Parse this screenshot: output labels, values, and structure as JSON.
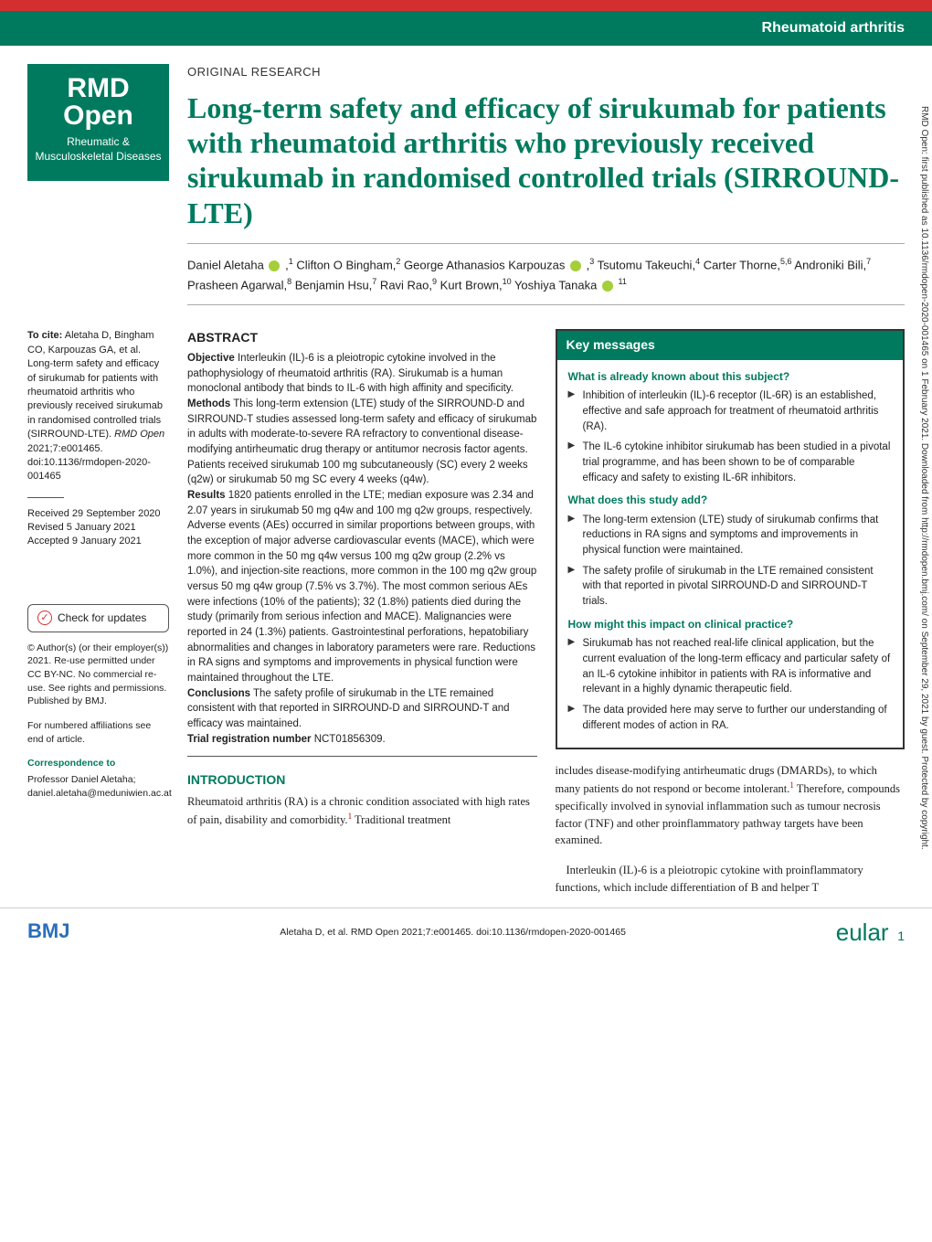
{
  "colors": {
    "primary_green": "#007a5e",
    "red_bar": "#d32f2f",
    "text": "#222",
    "link_red": "#c00"
  },
  "header": {
    "category": "Rheumatoid arthritis"
  },
  "logo": {
    "line1": "RMD",
    "line2": "Open",
    "subtitle": "Rheumatic & Musculoskeletal Diseases"
  },
  "article": {
    "type": "ORIGINAL RESEARCH",
    "title": "Long-term safety and efficacy of sirukumab for patients with rheumatoid arthritis who previously received sirukumab in randomised controlled trials (SIRROUND-LTE)",
    "authors_html": "Daniel Aletaha <span class='orcid-icon'></span> ,<sup>1</sup> Clifton O Bingham,<sup>2</sup> George Athanasios Karpouzas <span class='orcid-icon'></span> ,<sup>3</sup> Tsutomu Takeuchi,<sup>4</sup> Carter Thorne,<sup>5,6</sup> Androniki Bili,<sup>7</sup> Prasheen Agarwal,<sup>8</sup> Benjamin Hsu,<sup>7</sup> Ravi Rao,<sup>9</sup> Kurt Brown,<sup>10</sup> Yoshiya Tanaka <span class='orcid-icon'></span> <sup>11</sup>"
  },
  "sidebar": {
    "citation_label": "To cite:",
    "citation_text": "Aletaha D, Bingham CO, Karpouzas GA, et al. Long-term safety and efficacy of sirukumab for patients with rheumatoid arthritis who previously received sirukumab in randomised controlled trials (SIRROUND-LTE).",
    "citation_journal": "RMD Open",
    "citation_ref": "2021;7:e001465. doi:10.1136/rmdopen-2020-001465",
    "received": "Received 29 September 2020",
    "revised": "Revised 5 January 2021",
    "accepted": "Accepted 9 January 2021",
    "check_updates": "Check for updates",
    "copyright": "© Author(s) (or their employer(s)) 2021. Re-use permitted under CC BY-NC. No commercial re-use. See rights and permissions. Published by BMJ.",
    "affiliations_note": "For numbered affiliations see end of article.",
    "correspondence_head": "Correspondence to",
    "correspondence_body": "Professor Daniel Aletaha; daniel.aletaha@meduniwien.ac.at"
  },
  "abstract": {
    "head": "ABSTRACT",
    "objective_label": "Objective",
    "objective": "Interleukin (IL)-6 is a pleiotropic cytokine involved in the pathophysiology of rheumatoid arthritis (RA). Sirukumab is a human monoclonal antibody that binds to IL-6 with high affinity and specificity.",
    "methods_label": "Methods",
    "methods": "This long-term extension (LTE) study of the SIRROUND-D and SIRROUND-T studies assessed long-term safety and efficacy of sirukumab in adults with moderate-to-severe RA refractory to conventional disease-modifying antirheumatic drug therapy or antitumor necrosis factor agents. Patients received sirukumab 100 mg subcutaneously (SC) every 2 weeks (q2w) or sirukumab 50 mg SC every 4 weeks (q4w).",
    "results_label": "Results",
    "results": "1820 patients enrolled in the LTE; median exposure was 2.34 and 2.07 years in sirukumab 50 mg q4w and 100 mg q2w groups, respectively. Adverse events (AEs) occurred in similar proportions between groups, with the exception of major adverse cardiovascular events (MACE), which were more common in the 50 mg q4w versus 100 mg q2w group (2.2% vs 1.0%), and injection-site reactions, more common in the 100 mg q2w group versus 50 mg q4w group (7.5% vs 3.7%). The most common serious AEs were infections (10% of the patients); 32 (1.8%) patients died during the study (primarily from serious infection and MACE). Malignancies were reported in 24 (1.3%) patients. Gastrointestinal perforations, hepatobiliary abnormalities and changes in laboratory parameters were rare. Reductions in RA signs and symptoms and improvements in physical function were maintained throughout the LTE.",
    "conclusions_label": "Conclusions",
    "conclusions": "The safety profile of sirukumab in the LTE remained consistent with that reported in SIRROUND-D and SIRROUND-T and efficacy was maintained.",
    "trial_label": "Trial registration number",
    "trial": "NCT01856309."
  },
  "introduction": {
    "head": "INTRODUCTION",
    "p1": "Rheumatoid arthritis (RA) is a chronic condition associated with high rates of pain, disability and comorbidity.",
    "p1_cont": " Traditional treatment",
    "p2": "includes disease-modifying antirheumatic drugs (DMARDs), to which many patients do not respond or become intolerant.",
    "p2_cont": " Therefore, compounds specifically involved in synovial inflammation such as tumour necrosis factor (TNF) and other proinflammatory pathway targets have been examined.",
    "p3": "Interleukin (IL)-6 is a pleiotropic cytokine with proinflammatory functions, which include differentiation of B and helper T"
  },
  "key_messages": {
    "header": "Key messages",
    "q1": "What is already known about this subject?",
    "q1_items": [
      "Inhibition of interleukin (IL)-6 receptor (IL-6R) is an established, effective and safe approach for treatment of rheumatoid arthritis (RA).",
      "The IL-6 cytokine inhibitor sirukumab has been studied in a pivotal trial programme, and has been shown to be of comparable efficacy and safety to existing IL-6R inhibitors."
    ],
    "q2": "What does this study add?",
    "q2_items": [
      "The long-term extension (LTE) study of sirukumab confirms that reductions in RA signs and symptoms and improvements in physical function were maintained.",
      "The safety profile of sirukumab in the LTE remained consistent with that reported in pivotal SIRROUND-D and SIRROUND-T trials."
    ],
    "q3": "How might this impact on clinical practice?",
    "q3_items": [
      "Sirukumab has not reached real-life clinical application, but the current evaluation of the long-term efficacy and particular safety of an IL-6 cytokine inhibitor in patients with RA is informative and relevant in a highly dynamic therapeutic field.",
      "The data provided here may serve to further our understanding of different modes of action in RA."
    ]
  },
  "footer": {
    "bmj": "BMJ",
    "citation": "Aletaha D, et al. RMD Open 2021;7:e001465. doi:10.1136/rmdopen-2020-001465",
    "eular": "eular",
    "page": "1"
  },
  "vertical_note": "RMD Open: first published as 10.1136/rmdopen-2020-001465 on 1 February 2021. Downloaded from http://rmdopen.bmj.com/ on September 29, 2021 by guest. Protected by copyright."
}
